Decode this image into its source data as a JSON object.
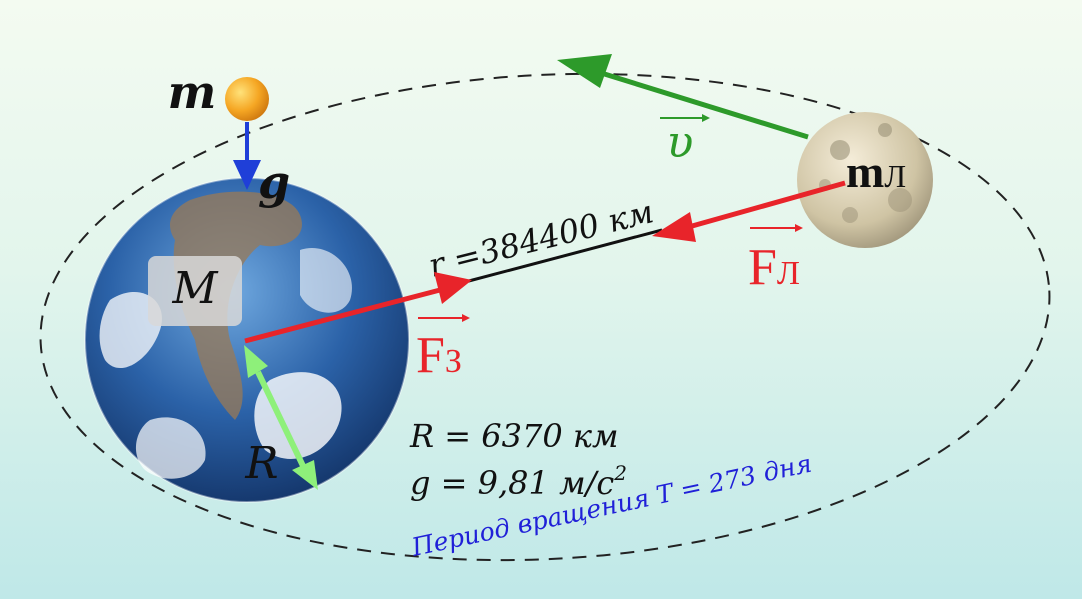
{
  "labels": {
    "small_mass": "m",
    "gravity": "g",
    "earth_mass": "M",
    "moon_mass": "m",
    "moon_mass_sub": "Л",
    "velocity": "υ",
    "distance": "r =384400 км",
    "force_earth": "F",
    "force_earth_sub": "З",
    "force_moon": "F",
    "force_moon_sub": "Л",
    "earth_radius_symbol": "R",
    "radius_value": "R = 6370 км",
    "g_value": "g = 9,81 м/с",
    "g_value_sup": "2",
    "period": "Период вращения T = 273 дня"
  },
  "colors": {
    "background_top": "#f4fbf1",
    "background_bottom": "#bfe8e8",
    "force_arrow": "#e8242a",
    "force_text": "#e8242a",
    "velocity_arrow": "#2d9a2a",
    "radius_arrow": "#8ef07a",
    "gravity_arrow": "#1f3fd8",
    "period_text": "#2020d8",
    "small_body": "#f5a623",
    "orbit_line": "#222222"
  }
}
